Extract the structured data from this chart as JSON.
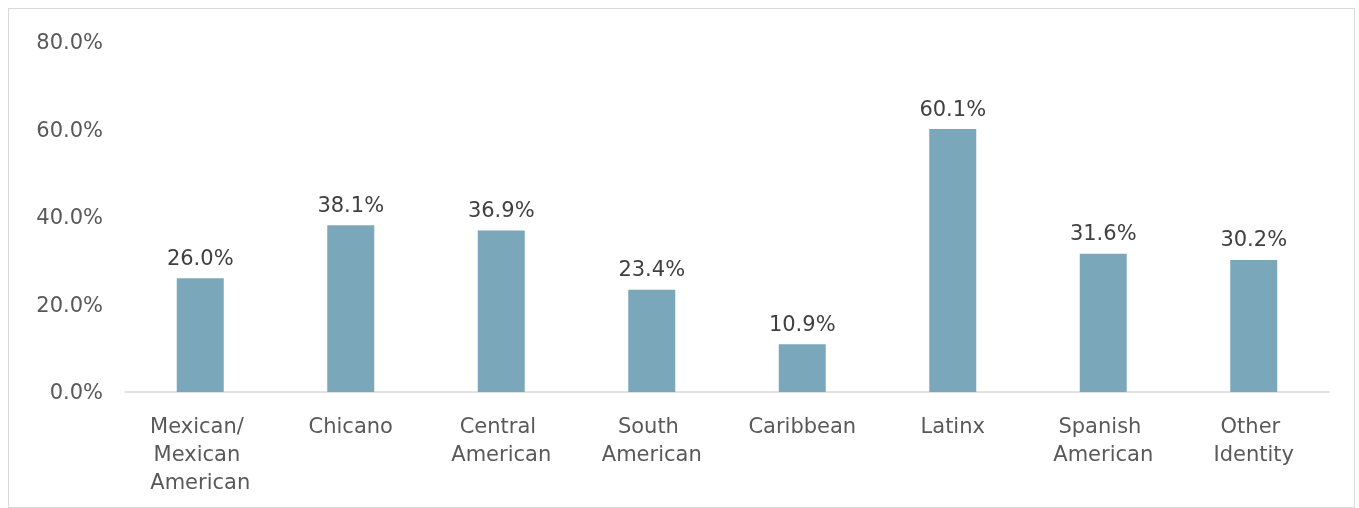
{
  "chart_data": {
    "type": "bar",
    "categories": [
      "Mexican/ Mexican American",
      "Chicano",
      "Central American",
      "South American",
      "Caribbean",
      "Latinx",
      "Spanish American",
      "Other Identity"
    ],
    "values": [
      26.0,
      38.1,
      36.9,
      23.4,
      10.9,
      60.1,
      31.6,
      30.2
    ],
    "value_labels": [
      "26.0%",
      "38.1%",
      "36.9%",
      "23.4%",
      "10.9%",
      "60.1%",
      "31.6%",
      "30.2%"
    ],
    "color": "#7ba7bb",
    "ylim": [
      0,
      80
    ],
    "yticks": [
      {
        "value": 0,
        "label": "0.0%"
      },
      {
        "value": 20,
        "label": "20.0%"
      },
      {
        "value": 40,
        "label": "40.0%"
      },
      {
        "value": 60,
        "label": "60.0%"
      },
      {
        "value": 80,
        "label": "80.0%"
      }
    ],
    "grid": false
  }
}
